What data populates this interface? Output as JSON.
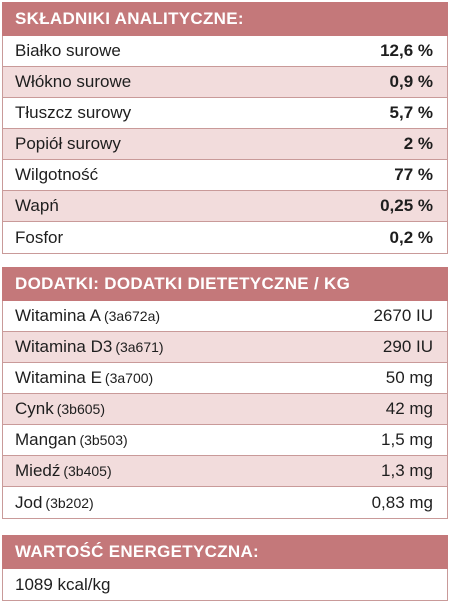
{
  "analytical": {
    "title": "SKŁADNIKI ANALITYCZNE:",
    "rows": [
      {
        "label": "Białko surowe",
        "value": "12,6 %"
      },
      {
        "label": "Włókno surowe",
        "value": "0,9 %"
      },
      {
        "label": "Tłuszcz surowy",
        "value": "5,7 %"
      },
      {
        "label": "Popiół surowy",
        "value": "2 %"
      },
      {
        "label": "Wilgotność",
        "value": "77 %"
      },
      {
        "label": "Wapń",
        "value": "0,25 %"
      },
      {
        "label": "Fosfor",
        "value": "0,2 %"
      }
    ]
  },
  "additives": {
    "title": "DODATKI: DODATKI DIETETYCZNE / KG",
    "rows": [
      {
        "label": "Witamina A",
        "code": "(3a672a)",
        "value": "2670 IU"
      },
      {
        "label": "Witamina D3",
        "code": "(3a671)",
        "value": "290 IU"
      },
      {
        "label": "Witamina E",
        "code": "(3a700)",
        "value": "50 mg"
      },
      {
        "label": "Cynk",
        "code": "(3b605)",
        "value": "42 mg"
      },
      {
        "label": "Mangan",
        "code": "(3b503)",
        "value": "1,5 mg"
      },
      {
        "label": "Miedź",
        "code": "(3b405)",
        "value": "1,3 mg"
      },
      {
        "label": "Jod",
        "code": "(3b202)",
        "value": "0,83 mg"
      }
    ]
  },
  "energy": {
    "title": "WARTOŚĆ ENERGETYCZNA:",
    "value": "1089 kcal/kg"
  },
  "colors": {
    "header_bg": "#c4787a",
    "alt_row_bg": "#f2dcdc",
    "border": "#c99a99"
  }
}
